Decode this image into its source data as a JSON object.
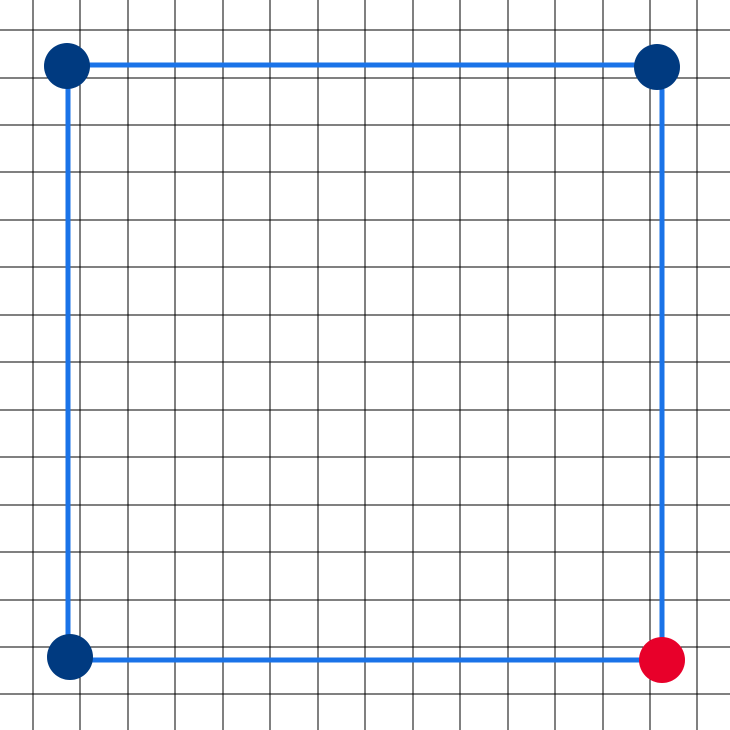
{
  "colors": {
    "background": "#ffffff",
    "grid": "#000000",
    "polygon_edge": "#1a73e8",
    "vertex_default": "#003a80",
    "vertex_active": "#e8002a"
  },
  "polygon": {
    "closed": true,
    "vertices": [
      {
        "name": "top-left",
        "state": "default"
      },
      {
        "name": "top-right",
        "state": "default"
      },
      {
        "name": "bottom-right",
        "state": "active"
      },
      {
        "name": "bottom-left",
        "state": "default"
      }
    ]
  }
}
